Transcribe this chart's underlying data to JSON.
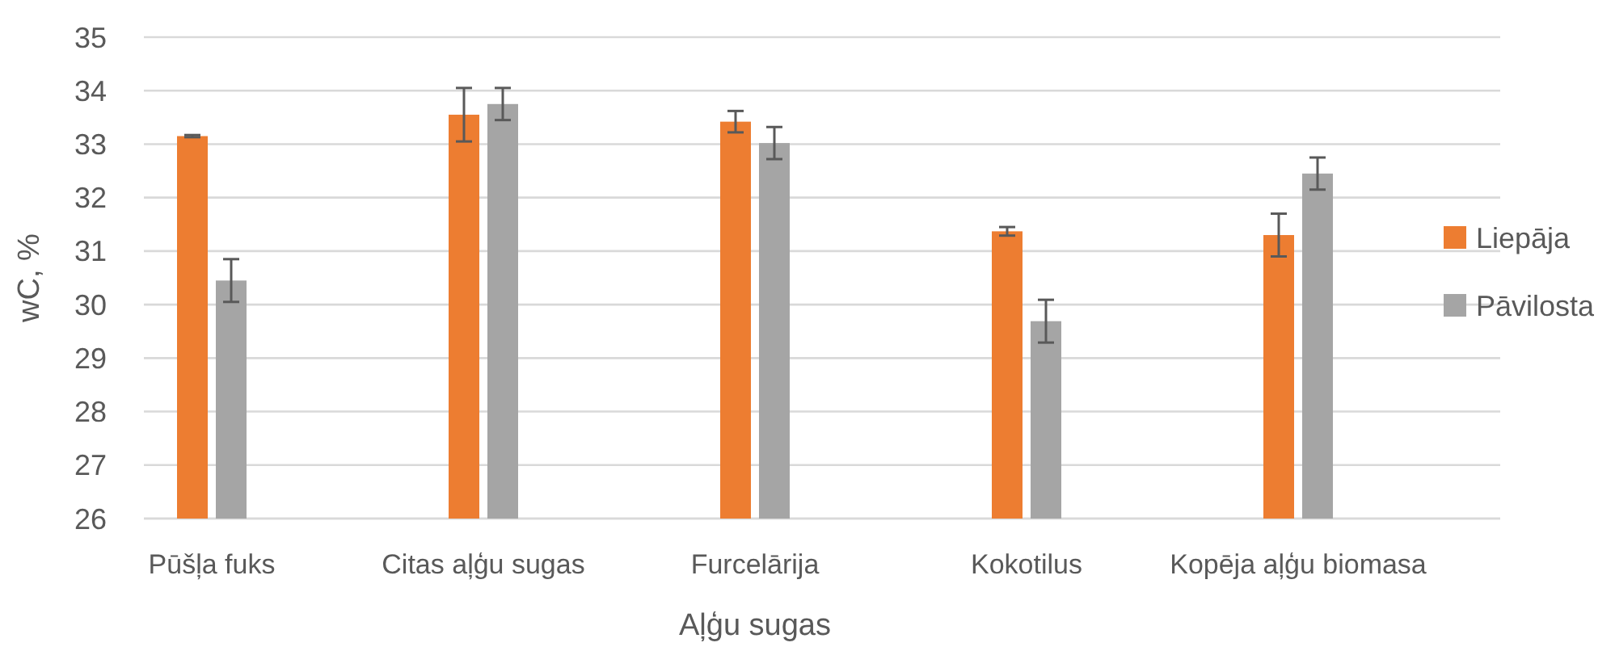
{
  "chart_data": {
    "type": "bar",
    "xlabel": "Aļģu sugas",
    "ylabel": "wC, %",
    "categories": [
      "Pūšļa fuks",
      "Citas aļģu sugas",
      "Furcelārija",
      "Kokotilus",
      "Kopēja aļģu biomasa"
    ],
    "series": [
      {
        "name": "Liepāja",
        "color": "#ed7d31",
        "values": [
          33.15,
          33.55,
          33.42,
          31.37,
          31.3
        ],
        "errors": [
          0.02,
          0.5,
          0.2,
          0.08,
          0.4
        ]
      },
      {
        "name": "Pāvilosta",
        "color": "#a5a5a5",
        "values": [
          30.45,
          33.75,
          33.02,
          29.69,
          32.45
        ],
        "errors": [
          0.4,
          0.3,
          0.3,
          0.4,
          0.3
        ]
      }
    ],
    "ylim": [
      26,
      35
    ],
    "yticks": [
      26,
      27,
      28,
      29,
      30,
      31,
      32,
      33,
      34,
      35
    ],
    "grid": "y",
    "legend": "right"
  }
}
